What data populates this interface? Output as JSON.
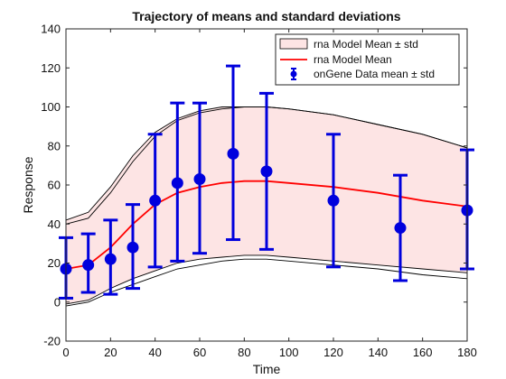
{
  "chart_data": {
    "type": "line",
    "title": "Trajectory of means and standard deviations",
    "xlabel": "Time",
    "ylabel": "Response",
    "xlim": [
      0,
      180
    ],
    "ylim": [
      -20,
      140
    ],
    "xticks": [
      0,
      20,
      40,
      60,
      80,
      100,
      120,
      140,
      160,
      180
    ],
    "yticks": [
      -20,
      0,
      20,
      40,
      60,
      80,
      100,
      120,
      140
    ],
    "grid": false,
    "legend_position": "top-right",
    "legend": [
      {
        "label": "rna Model Mean ± std",
        "kind": "band"
      },
      {
        "label": "rna Model Mean",
        "kind": "line"
      },
      {
        "label": "onGene Data mean ± std",
        "kind": "errorbar"
      }
    ],
    "colors": {
      "band_fill": "#fde4e4",
      "band_edge": "#000000",
      "model_mean": "#ff0000",
      "data": "#0000dd"
    },
    "model_mean": {
      "x": [
        0,
        10,
        20,
        30,
        40,
        50,
        60,
        70,
        80,
        90,
        100,
        120,
        140,
        160,
        180
      ],
      "y": [
        17,
        19,
        28,
        40,
        50,
        56,
        59,
        61,
        62,
        62,
        61,
        59,
        56,
        52,
        49
      ]
    },
    "model_upper": {
      "x": [
        0,
        10,
        20,
        30,
        40,
        50,
        60,
        70,
        80,
        90,
        100,
        120,
        140,
        160,
        180
      ],
      "y": [
        40,
        43,
        56,
        72,
        85,
        93,
        97,
        99,
        100,
        100,
        99,
        96,
        91,
        86,
        79
      ]
    },
    "model_lower": {
      "x": [
        0,
        10,
        20,
        30,
        40,
        50,
        60,
        70,
        80,
        90,
        100,
        120,
        140,
        160,
        180
      ],
      "y": [
        -2,
        0,
        5,
        9,
        13,
        17,
        19,
        21,
        22,
        22,
        21,
        19,
        17,
        14,
        12
      ]
    },
    "model_outer_upper": {
      "x": [
        0,
        10,
        20,
        30,
        40,
        50,
        60,
        70,
        80,
        90,
        100,
        120,
        140,
        160,
        180
      ],
      "y": [
        42,
        46,
        59,
        75,
        87,
        94,
        98,
        100,
        100,
        100,
        99,
        96,
        91,
        86,
        79
      ]
    },
    "model_outer_lower": {
      "x": [
        0,
        10,
        20,
        30,
        40,
        50,
        60,
        70,
        80,
        90,
        100,
        120,
        140,
        160,
        180
      ],
      "y": [
        -1,
        1,
        7,
        12,
        16,
        20,
        22,
        23,
        24,
        24,
        23,
        21,
        19,
        17,
        15
      ]
    },
    "data_points": [
      {
        "x": 0,
        "mean": 17,
        "lower": 2,
        "upper": 33
      },
      {
        "x": 10,
        "mean": 19,
        "lower": 5,
        "upper": 35
      },
      {
        "x": 20,
        "mean": 22,
        "lower": 4,
        "upper": 42
      },
      {
        "x": 30,
        "mean": 28,
        "lower": 7,
        "upper": 50
      },
      {
        "x": 40,
        "mean": 52,
        "lower": 18,
        "upper": 86
      },
      {
        "x": 50,
        "mean": 61,
        "lower": 21,
        "upper": 102
      },
      {
        "x": 60,
        "mean": 63,
        "lower": 25,
        "upper": 102
      },
      {
        "x": 75,
        "mean": 76,
        "lower": 32,
        "upper": 121
      },
      {
        "x": 90,
        "mean": 67,
        "lower": 27,
        "upper": 107
      },
      {
        "x": 120,
        "mean": 52,
        "lower": 18,
        "upper": 86
      },
      {
        "x": 150,
        "mean": 38,
        "lower": 11,
        "upper": 65
      },
      {
        "x": 180,
        "mean": 47,
        "lower": 17,
        "upper": 78
      }
    ]
  }
}
